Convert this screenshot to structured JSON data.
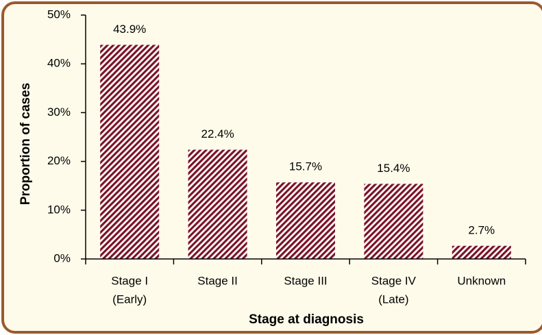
{
  "chart_data": {
    "type": "bar",
    "categories": [
      [
        "Stage I",
        "(Early)"
      ],
      [
        "Stage II"
      ],
      [
        "Stage III"
      ],
      [
        "Stage IV",
        "(Late)"
      ],
      [
        "Unknown"
      ]
    ],
    "values": [
      43.9,
      22.4,
      15.7,
      15.4,
      2.7
    ],
    "value_labels": [
      "43.9%",
      "22.4%",
      "15.7%",
      "15.4%",
      "2.7%"
    ],
    "color": "#7b1426",
    "ylim": [
      0,
      50
    ],
    "yticks": [
      {
        "value": 0,
        "label": "0%"
      },
      {
        "value": 10,
        "label": "10%"
      },
      {
        "value": 20,
        "label": "20%"
      },
      {
        "value": 30,
        "label": "30%"
      },
      {
        "value": 40,
        "label": "40%"
      },
      {
        "value": 50,
        "label": "50%"
      }
    ],
    "xlabel": "Stage at diagnosis",
    "ylabel": "Proportion of cases"
  }
}
